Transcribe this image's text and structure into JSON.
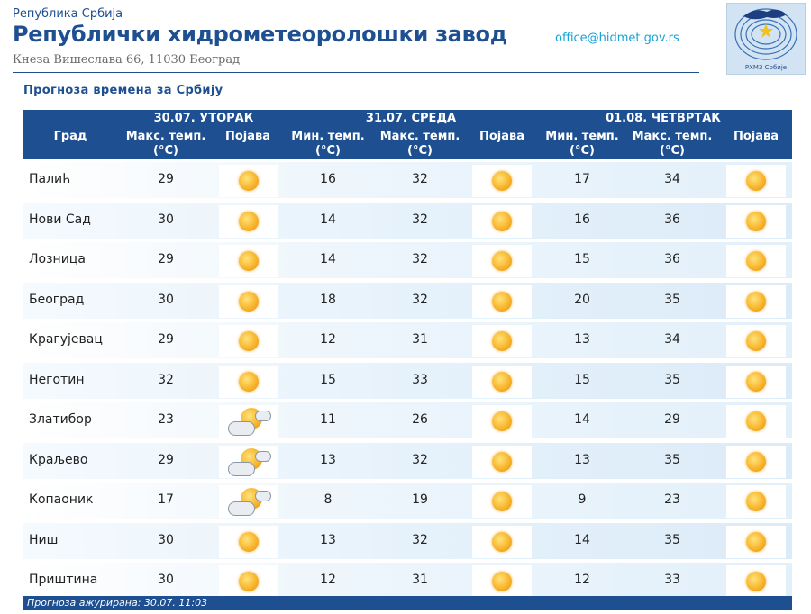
{
  "header": {
    "republic": "Република Србија",
    "institute": "Републички хидрометеоролошки завод",
    "address": "Кнеза Вишеслава 66, 11030 Београд",
    "email": "office@hidmet.gov.rs",
    "logo_text": "РХМЗ Србије"
  },
  "forecast_title": "Прогноза времена за Србију",
  "columns": {
    "day1": "30.07. УТОРАК",
    "day2": "31.07. СРЕДА",
    "day3": "01.08. ЧЕТВРТАК",
    "city": "Град",
    "max_temp": "Макс. темп.",
    "min_temp": "Мин. темп.",
    "unit": "(°C)",
    "phenomenon": "Појава"
  },
  "rows": [
    {
      "city": "Палић",
      "d1_max": "29",
      "d1_icon": "sunny-icon",
      "d2_min": "16",
      "d2_max": "32",
      "d2_icon": "sunny-icon",
      "d3_min": "17",
      "d3_max": "34",
      "d3_icon": "sunny-icon"
    },
    {
      "city": "Нови Сад",
      "d1_max": "30",
      "d1_icon": "sunny-icon",
      "d2_min": "14",
      "d2_max": "32",
      "d2_icon": "sunny-icon",
      "d3_min": "16",
      "d3_max": "36",
      "d3_icon": "sunny-icon"
    },
    {
      "city": "Лозница",
      "d1_max": "29",
      "d1_icon": "sunny-icon",
      "d2_min": "14",
      "d2_max": "32",
      "d2_icon": "sunny-icon",
      "d3_min": "15",
      "d3_max": "36",
      "d3_icon": "sunny-icon"
    },
    {
      "city": "Београд",
      "d1_max": "30",
      "d1_icon": "sunny-icon",
      "d2_min": "18",
      "d2_max": "32",
      "d2_icon": "sunny-icon",
      "d3_min": "20",
      "d3_max": "35",
      "d3_icon": "sunny-icon"
    },
    {
      "city": "Крагујевац",
      "d1_max": "29",
      "d1_icon": "sunny-icon",
      "d2_min": "12",
      "d2_max": "31",
      "d2_icon": "sunny-icon",
      "d3_min": "13",
      "d3_max": "34",
      "d3_icon": "sunny-icon"
    },
    {
      "city": "Неготин",
      "d1_max": "32",
      "d1_icon": "sunny-icon",
      "d2_min": "15",
      "d2_max": "33",
      "d2_icon": "sunny-icon",
      "d3_min": "15",
      "d3_max": "35",
      "d3_icon": "sunny-icon"
    },
    {
      "city": "Златибор",
      "d1_max": "23",
      "d1_icon": "partly-cloudy-icon",
      "d2_min": "11",
      "d2_max": "26",
      "d2_icon": "sunny-icon",
      "d3_min": "14",
      "d3_max": "29",
      "d3_icon": "sunny-icon"
    },
    {
      "city": "Краљево",
      "d1_max": "29",
      "d1_icon": "partly-cloudy-icon",
      "d2_min": "13",
      "d2_max": "32",
      "d2_icon": "sunny-icon",
      "d3_min": "13",
      "d3_max": "35",
      "d3_icon": "sunny-icon"
    },
    {
      "city": "Копаоник",
      "d1_max": "17",
      "d1_icon": "partly-cloudy-icon",
      "d2_min": "8",
      "d2_max": "19",
      "d2_icon": "sunny-icon",
      "d3_min": "9",
      "d3_max": "23",
      "d3_icon": "sunny-icon"
    },
    {
      "city": "Ниш",
      "d1_max": "30",
      "d1_icon": "sunny-icon",
      "d2_min": "13",
      "d2_max": "32",
      "d2_icon": "sunny-icon",
      "d3_min": "14",
      "d3_max": "35",
      "d3_icon": "sunny-icon"
    },
    {
      "city": "Приштина",
      "d1_max": "30",
      "d1_icon": "sunny-icon",
      "d2_min": "12",
      "d2_max": "31",
      "d2_icon": "sunny-icon",
      "d3_min": "12",
      "d3_max": "33",
      "d3_icon": "sunny-icon"
    }
  ],
  "footer": {
    "updated": "Прогноза ажурирана:  30.07. 11:03"
  },
  "colors": {
    "primary": "#1d4f91",
    "email": "#17a2d8",
    "sun": "#f7b52c"
  }
}
